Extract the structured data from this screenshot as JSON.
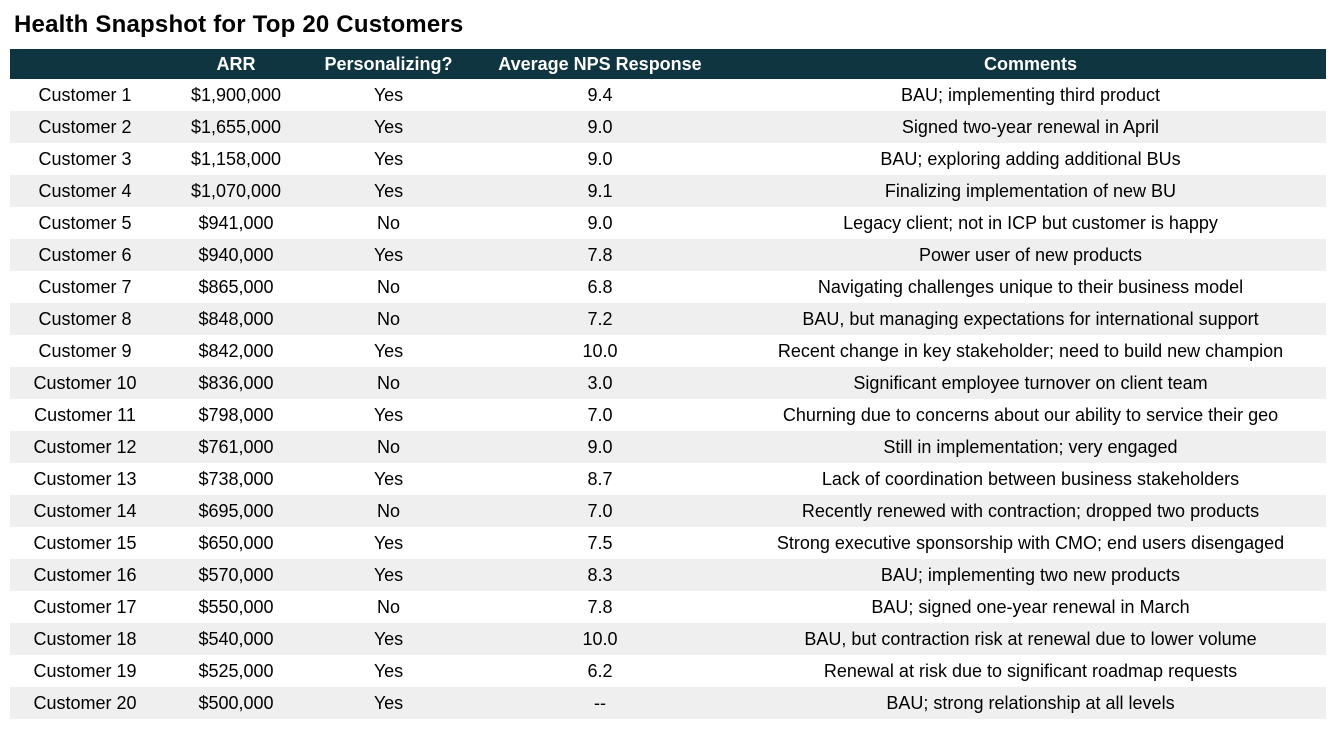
{
  "colors": {
    "header_bg": "#0e3540",
    "header_text": "#ffffff",
    "row_stripe": "#efefef",
    "body_text": "#000000",
    "title_text": "#000000"
  },
  "chart_data": {
    "type": "table",
    "title": "Health Snapshot for Top 20 Customers",
    "columns": [
      "",
      "ARR",
      "Personalizing?",
      "Average NPS Response",
      "Comments"
    ],
    "rows": [
      {
        "customer": "Customer 1",
        "arr": "$1,900,000",
        "personalizing": "Yes",
        "nps": "9.4",
        "comments": "BAU; implementing third product"
      },
      {
        "customer": "Customer 2",
        "arr": "$1,655,000",
        "personalizing": "Yes",
        "nps": "9.0",
        "comments": "Signed two-year renewal in April"
      },
      {
        "customer": "Customer 3",
        "arr": "$1,158,000",
        "personalizing": "Yes",
        "nps": "9.0",
        "comments": "BAU; exploring adding additional BUs"
      },
      {
        "customer": "Customer 4",
        "arr": "$1,070,000",
        "personalizing": "Yes",
        "nps": "9.1",
        "comments": "Finalizing implementation of new BU"
      },
      {
        "customer": "Customer 5",
        "arr": "$941,000",
        "personalizing": "No",
        "nps": "9.0",
        "comments": "Legacy client; not in ICP but customer is happy"
      },
      {
        "customer": "Customer 6",
        "arr": "$940,000",
        "personalizing": "Yes",
        "nps": "7.8",
        "comments": "Power user of new products"
      },
      {
        "customer": "Customer 7",
        "arr": "$865,000",
        "personalizing": "No",
        "nps": "6.8",
        "comments": "Navigating challenges unique to their business model"
      },
      {
        "customer": "Customer 8",
        "arr": "$848,000",
        "personalizing": "No",
        "nps": "7.2",
        "comments": "BAU, but managing expectations for international support"
      },
      {
        "customer": "Customer 9",
        "arr": "$842,000",
        "personalizing": "Yes",
        "nps": "10.0",
        "comments": "Recent change in key stakeholder; need to build new champion"
      },
      {
        "customer": "Customer 10",
        "arr": "$836,000",
        "personalizing": "No",
        "nps": "3.0",
        "comments": "Significant employee turnover on client team"
      },
      {
        "customer": "Customer 11",
        "arr": "$798,000",
        "personalizing": "Yes",
        "nps": "7.0",
        "comments": "Churning due to concerns about our ability to service their geo"
      },
      {
        "customer": "Customer 12",
        "arr": "$761,000",
        "personalizing": "No",
        "nps": "9.0",
        "comments": "Still in implementation; very engaged"
      },
      {
        "customer": "Customer 13",
        "arr": "$738,000",
        "personalizing": "Yes",
        "nps": "8.7",
        "comments": "Lack of coordination between business stakeholders"
      },
      {
        "customer": "Customer 14",
        "arr": "$695,000",
        "personalizing": "No",
        "nps": "7.0",
        "comments": "Recently renewed with contraction; dropped two products"
      },
      {
        "customer": "Customer 15",
        "arr": "$650,000",
        "personalizing": "Yes",
        "nps": "7.5",
        "comments": "Strong executive sponsorship with CMO; end users disengaged"
      },
      {
        "customer": "Customer 16",
        "arr": "$570,000",
        "personalizing": "Yes",
        "nps": "8.3",
        "comments": "BAU; implementing two new products"
      },
      {
        "customer": "Customer 17",
        "arr": "$550,000",
        "personalizing": "No",
        "nps": "7.8",
        "comments": "BAU; signed one-year renewal in March"
      },
      {
        "customer": "Customer 18",
        "arr": "$540,000",
        "personalizing": "Yes",
        "nps": "10.0",
        "comments": "BAU, but contraction risk at renewal due to lower volume"
      },
      {
        "customer": "Customer 19",
        "arr": "$525,000",
        "personalizing": "Yes",
        "nps": "6.2",
        "comments": "Renewal at risk due to significant roadmap requests"
      },
      {
        "customer": "Customer 20",
        "arr": "$500,000",
        "personalizing": "Yes",
        "nps": "--",
        "comments": "BAU; strong relationship at all levels"
      }
    ]
  }
}
